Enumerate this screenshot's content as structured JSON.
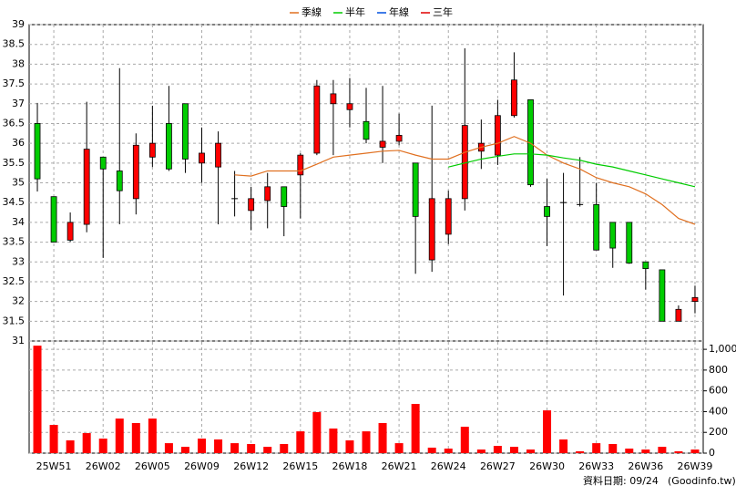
{
  "chart_data": [
    {
      "type": "candlestick",
      "categories": [
        null,
        "25W51",
        null,
        null,
        "26W02",
        null,
        null,
        "26W05",
        null,
        null,
        "26W09",
        null,
        null,
        "26W12",
        null,
        null,
        "26W15",
        null,
        null,
        "26W18",
        null,
        null,
        "26W21",
        null,
        null,
        "26W24",
        null,
        null,
        "26W27",
        null,
        null,
        "26W30",
        null,
        null,
        "26W33",
        null,
        null,
        "26W36",
        null,
        null,
        "26W39"
      ],
      "open": [
        36.5,
        34.65,
        33.55,
        33.95,
        35.65,
        35.3,
        34.6,
        35.65,
        36.5,
        37.0,
        35.5,
        35.4,
        34.6,
        34.3,
        34.55,
        34.9,
        35.2,
        35.75,
        37.0,
        36.85,
        36.55,
        35.9,
        36.05,
        35.5,
        33.05,
        33.7,
        34.6,
        35.8,
        35.7,
        36.7,
        37.1,
        34.4,
        34.5,
        34.45,
        34.45,
        34.0,
        34.0,
        33.0,
        32.8,
        31.5,
        32.0
      ],
      "high": [
        37.02,
        34.65,
        34.25,
        37.05,
        35.65,
        37.9,
        36.25,
        36.95,
        37.45,
        37.0,
        36.4,
        36.3,
        35.3,
        34.9,
        35.25,
        34.9,
        35.75,
        37.6,
        37.6,
        37.65,
        37.4,
        37.45,
        36.75,
        35.5,
        36.95,
        34.8,
        38.4,
        36.6,
        37.1,
        38.3,
        37.1,
        35.1,
        35.25,
        35.65,
        35.0,
        34.0,
        34.0,
        33.0,
        32.8,
        31.9,
        32.4
      ],
      "low": [
        34.78,
        33.5,
        33.5,
        33.75,
        33.1,
        33.95,
        34.2,
        35.4,
        35.3,
        35.25,
        35.0,
        33.95,
        34.15,
        33.8,
        33.85,
        33.65,
        34.1,
        35.7,
        35.7,
        36.4,
        36.0,
        35.5,
        35.95,
        32.7,
        32.75,
        33.45,
        34.3,
        35.35,
        35.45,
        36.65,
        34.9,
        33.4,
        32.15,
        34.4,
        33.3,
        32.85,
        32.95,
        32.3,
        31.5,
        31.5,
        31.7
      ],
      "close": [
        35.1,
        33.5,
        34.0,
        35.85,
        35.35,
        34.8,
        35.95,
        36.0,
        35.35,
        35.6,
        35.75,
        36.0,
        34.6,
        34.6,
        34.9,
        34.4,
        35.7,
        37.45,
        37.25,
        37.0,
        36.1,
        36.05,
        36.2,
        34.15,
        34.6,
        34.6,
        36.45,
        36.0,
        36.7,
        37.6,
        34.95,
        34.15,
        34.5,
        34.45,
        33.3,
        33.35,
        32.97,
        32.83,
        31.5,
        31.8,
        32.1
      ],
      "up_color": "#ff0000",
      "down_color": "#00cc00",
      "series": [
        {
          "name": "季線",
          "color": "#e07020",
          "values": [
            null,
            null,
            null,
            null,
            null,
            null,
            null,
            null,
            null,
            null,
            null,
            null,
            35.2,
            35.17,
            35.3,
            35.3,
            35.3,
            35.47,
            35.65,
            35.7,
            35.75,
            35.8,
            35.82,
            35.7,
            35.6,
            35.6,
            35.77,
            35.9,
            36.0,
            36.17,
            36.0,
            35.7,
            35.5,
            35.35,
            35.13,
            35.0,
            34.9,
            34.72,
            34.45,
            34.1,
            33.95
          ]
        },
        {
          "name": "半年",
          "color": "#00cc00",
          "values": [
            null,
            null,
            null,
            null,
            null,
            null,
            null,
            null,
            null,
            null,
            null,
            null,
            null,
            null,
            null,
            null,
            null,
            null,
            null,
            null,
            null,
            null,
            null,
            null,
            null,
            35.4,
            35.5,
            35.6,
            35.67,
            35.73,
            35.73,
            35.7,
            35.63,
            35.57,
            35.47,
            35.4,
            35.3,
            35.2,
            35.1,
            35.0,
            34.9
          ]
        },
        {
          "name": "年線",
          "color": "#0050e0",
          "values": [
            null,
            null,
            null,
            null,
            null,
            null,
            null,
            null,
            null,
            null,
            null,
            null,
            null,
            null,
            null,
            null,
            null,
            null,
            null,
            null,
            null,
            null,
            null,
            null,
            null,
            null,
            null,
            null,
            null,
            null,
            null,
            null,
            null,
            null,
            null,
            null,
            null,
            null,
            null,
            null,
            null
          ]
        },
        {
          "name": "三年",
          "color": "#e00000",
          "values": [
            null,
            null,
            null,
            null,
            null,
            null,
            null,
            null,
            null,
            null,
            null,
            null,
            null,
            null,
            null,
            null,
            null,
            null,
            null,
            null,
            null,
            null,
            null,
            null,
            null,
            null,
            null,
            null,
            null,
            null,
            null,
            null,
            null,
            null,
            null,
            null,
            null,
            null,
            null,
            null,
            null
          ]
        }
      ],
      "ylim": [
        31,
        39
      ],
      "yticks": [
        31,
        31.5,
        32,
        32.5,
        33,
        33.5,
        34,
        34.5,
        35,
        35.5,
        36,
        36.5,
        37,
        37.5,
        38,
        38.5,
        39
      ],
      "grid": true
    },
    {
      "type": "bar",
      "color": "#ff0000",
      "values": [
        1035,
        272,
        123,
        193,
        140,
        333,
        290,
        333,
        96,
        61,
        140,
        132,
        96,
        88,
        61,
        88,
        210,
        395,
        237,
        123,
        210,
        290,
        96,
        474,
        53,
        44,
        254,
        35,
        70,
        61,
        35,
        412,
        132,
        18,
        96,
        88,
        44,
        35,
        61,
        18,
        35
      ],
      "ylim": [
        0,
        1080
      ],
      "yticks": [
        0,
        200,
        400,
        600,
        800,
        {
          "value": 1000,
          "label": "1,000"
        }
      ],
      "grid": true
    }
  ],
  "footer": [
    "資料日期: 09/24",
    "(Goodinfo.tw)"
  ]
}
